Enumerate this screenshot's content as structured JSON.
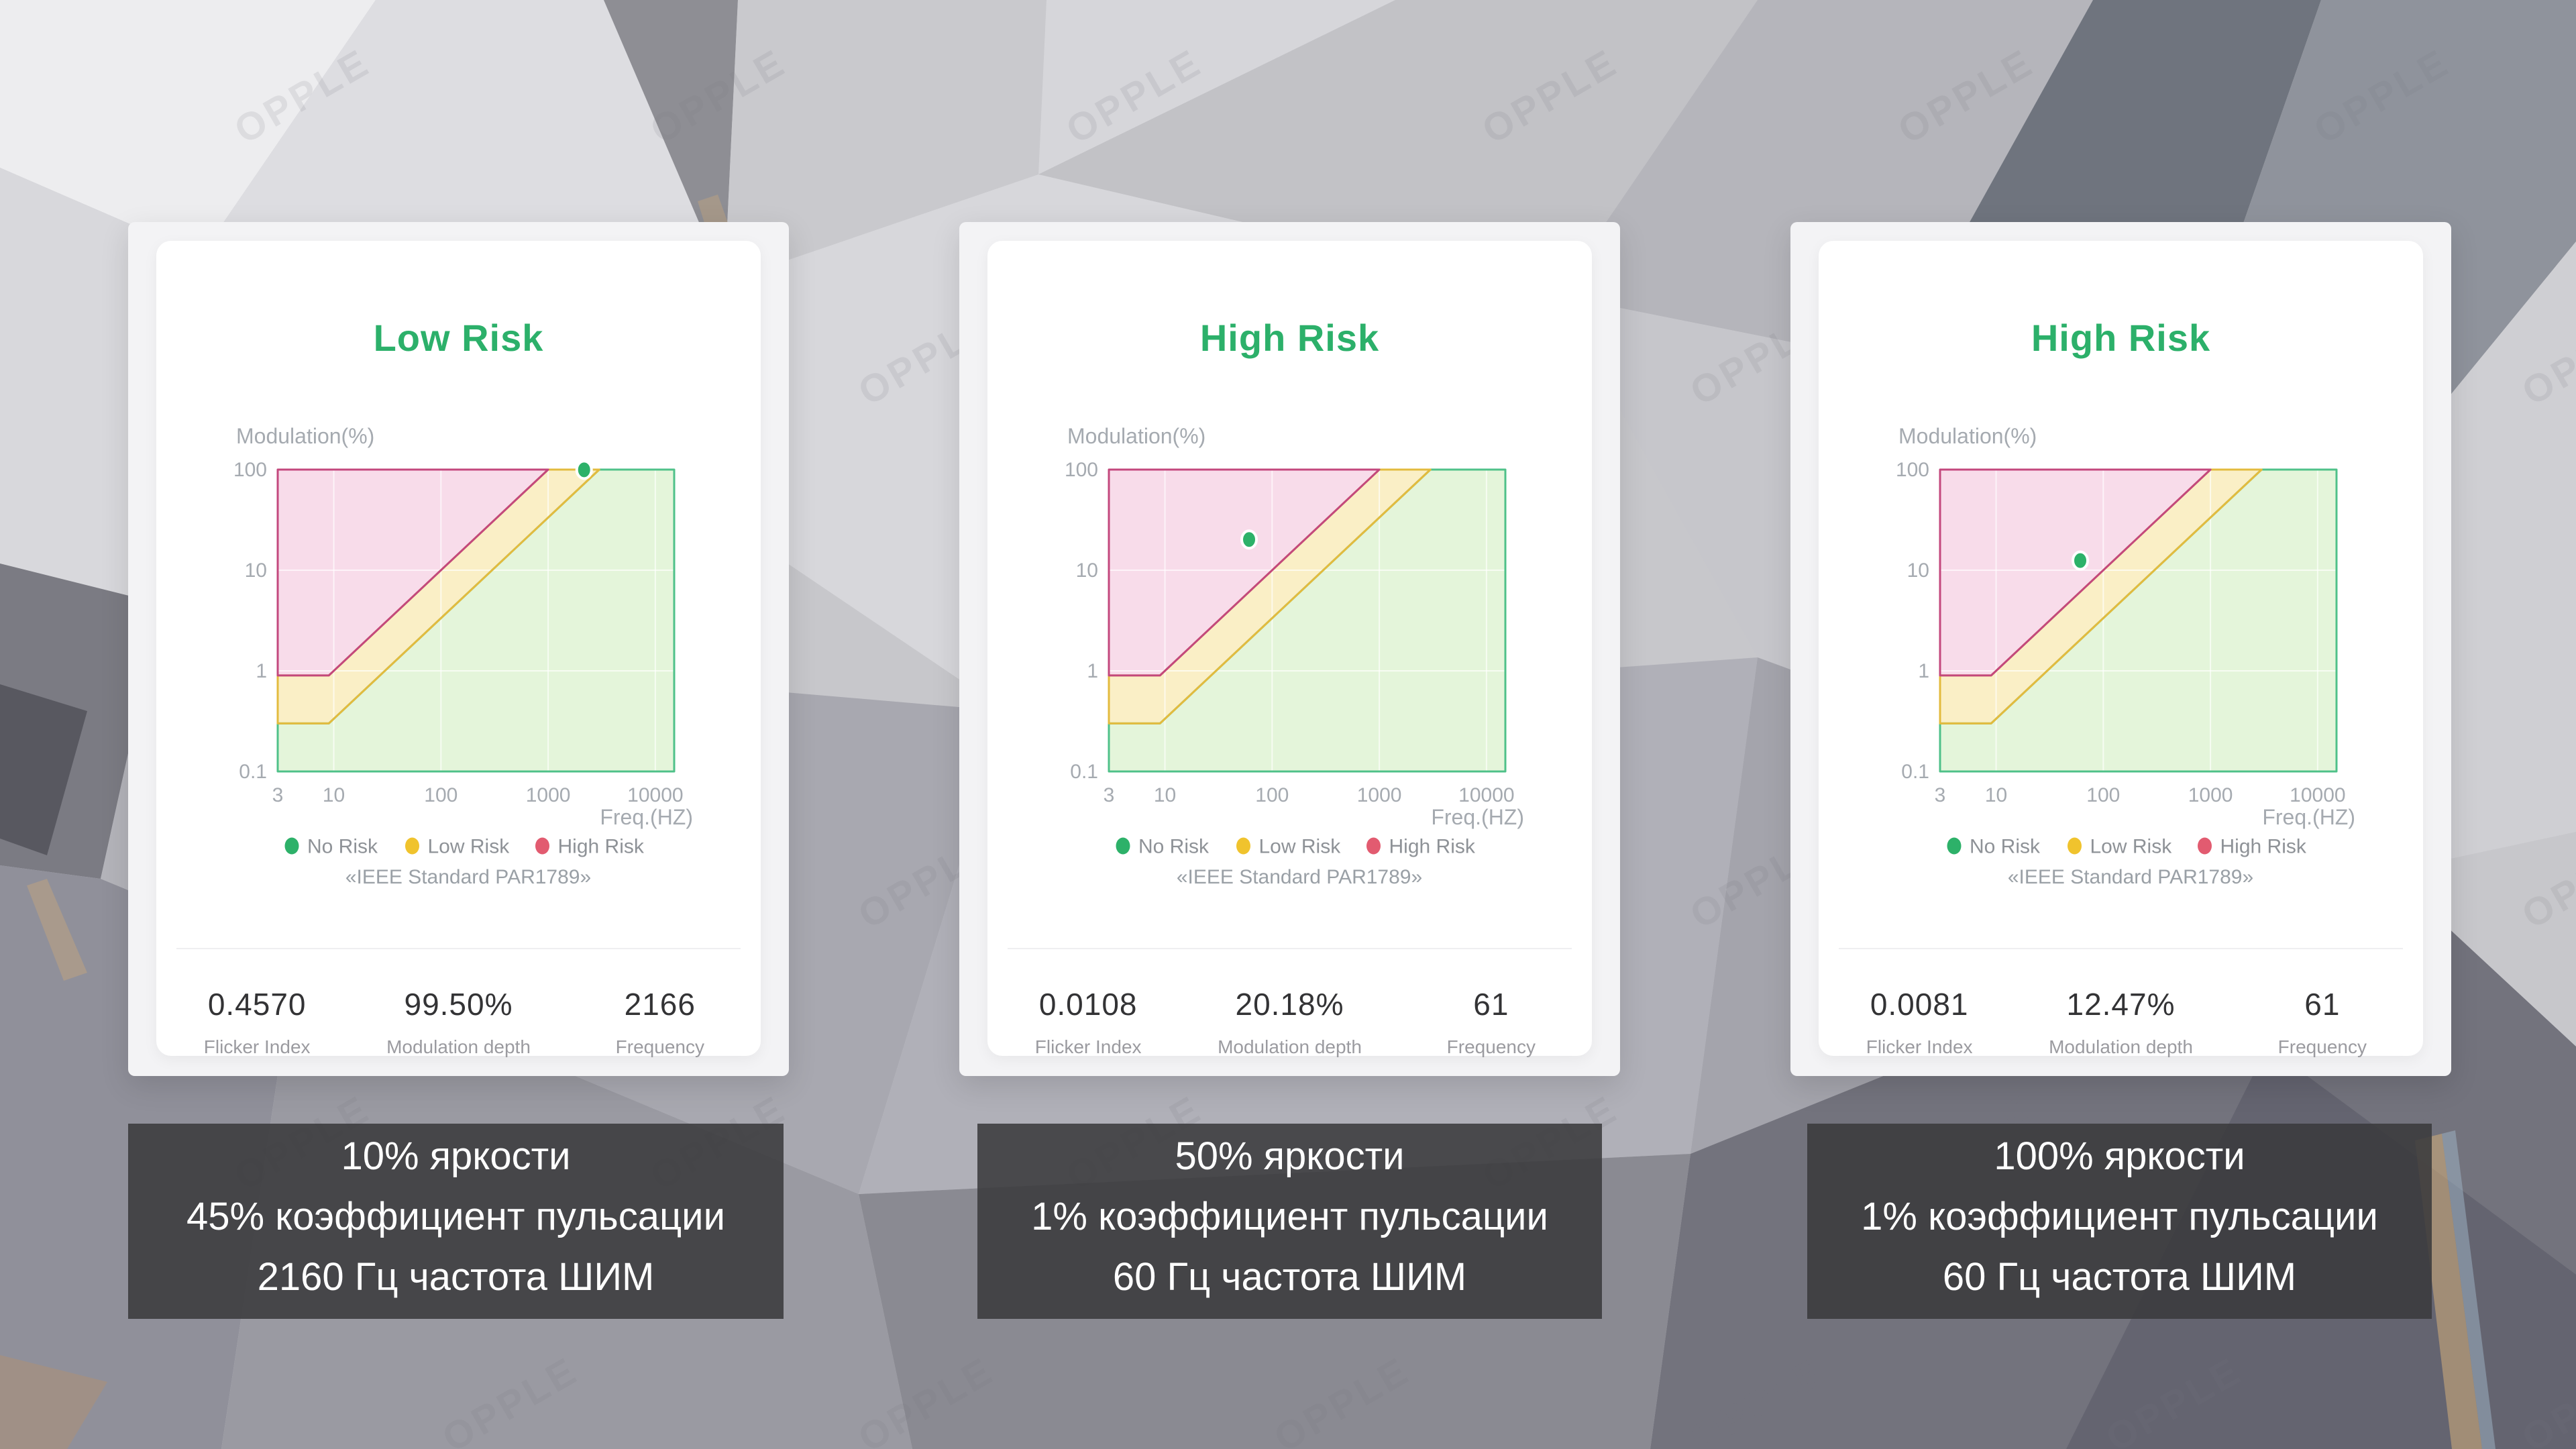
{
  "theme": {
    "verdict_green": "#2cb06a",
    "caption_background": "rgba(58,58,60,0.88)",
    "card_background": "#ffffff",
    "page_background": "#c7c7cb"
  },
  "watermark": {
    "text": "OPPLE"
  },
  "cards": [
    {
      "verdict": "Low Risk",
      "stats": [
        {
          "value": "0.4570",
          "label": "Flicker Index"
        },
        {
          "value": "99.50%",
          "label": "Modulation depth"
        },
        {
          "value": "2166",
          "label": "Frequency"
        }
      ],
      "caption": [
        "10% яркости",
        "45% коэффициент пульсации",
        "2160 Гц частота ШИМ"
      ]
    },
    {
      "verdict": "High Risk",
      "stats": [
        {
          "value": "0.0108",
          "label": "Flicker Index"
        },
        {
          "value": "20.18%",
          "label": "Modulation depth"
        },
        {
          "value": "61",
          "label": "Frequency"
        }
      ],
      "caption": [
        "50% яркости",
        "1% коэффициент пульсации",
        "60 Гц частота ШИМ"
      ]
    },
    {
      "verdict": "High Risk",
      "stats": [
        {
          "value": "0.0081",
          "label": "Flicker Index"
        },
        {
          "value": "12.47%",
          "label": "Modulation depth"
        },
        {
          "value": "61",
          "label": "Frequency"
        }
      ],
      "caption": [
        "100% яркости",
        "1% коэффициент пульсации",
        "60 Гц частота ШИМ"
      ]
    }
  ],
  "chart_data": [
    {
      "type": "area",
      "title": "",
      "xlabel": "Freq.(HZ)",
      "ylabel": "Modulation(%)",
      "x_scale": "log",
      "y_scale": "log",
      "xlim": [
        3,
        15000
      ],
      "ylim": [
        0.1,
        100
      ],
      "x_ticks": [
        3,
        10,
        100,
        1000,
        10000
      ],
      "y_ticks": [
        100,
        10,
        1,
        0.1
      ],
      "grid": true,
      "legend_position": "bottom",
      "legend": [
        {
          "label": "No Risk",
          "color": "#2db169"
        },
        {
          "label": "Low Risk",
          "color": "#f0c32d"
        },
        {
          "label": "High Risk",
          "color": "#e25b70"
        }
      ],
      "note": "《IEEE Standard PAR1789》",
      "regions": [
        {
          "name": "No Risk",
          "fill": "#e4f5da",
          "stroke": "#4fc189",
          "points": [
            [
              3,
              0.3
            ],
            [
              9,
              0.3
            ],
            [
              3000,
              100
            ],
            [
              15000,
              100
            ],
            [
              15000,
              0.1
            ],
            [
              3,
              0.1
            ]
          ]
        },
        {
          "name": "Low Risk",
          "fill": "#faefc6",
          "stroke": "#e3bb3e",
          "points": [
            [
              3,
              0.9
            ],
            [
              9,
              0.9
            ],
            [
              1000,
              100
            ],
            [
              3000,
              100
            ],
            [
              9,
              0.3
            ],
            [
              3,
              0.3
            ]
          ]
        },
        {
          "name": "High Risk",
          "fill": "#f8dcea",
          "stroke": "#c3487d",
          "points": [
            [
              3,
              100
            ],
            [
              1000,
              100
            ],
            [
              9,
              0.9
            ],
            [
              3,
              0.9
            ]
          ]
        }
      ],
      "series": [
        {
          "name": "measurement",
          "type": "scatter",
          "color": "#2db169",
          "points": [
            [
              2166,
              99.5
            ]
          ]
        }
      ]
    },
    {
      "type": "area",
      "title": "",
      "xlabel": "Freq.(HZ)",
      "ylabel": "Modulation(%)",
      "x_scale": "log",
      "y_scale": "log",
      "xlim": [
        3,
        15000
      ],
      "ylim": [
        0.1,
        100
      ],
      "x_ticks": [
        3,
        10,
        100,
        1000,
        10000
      ],
      "y_ticks": [
        100,
        10,
        1,
        0.1
      ],
      "grid": true,
      "legend_position": "bottom",
      "legend": [
        {
          "label": "No Risk",
          "color": "#2db169"
        },
        {
          "label": "Low Risk",
          "color": "#f0c32d"
        },
        {
          "label": "High Risk",
          "color": "#e25b70"
        }
      ],
      "note": "《IEEE Standard PAR1789》",
      "regions": [
        {
          "name": "No Risk",
          "fill": "#e4f5da",
          "stroke": "#4fc189",
          "points": [
            [
              3,
              0.3
            ],
            [
              9,
              0.3
            ],
            [
              3000,
              100
            ],
            [
              15000,
              100
            ],
            [
              15000,
              0.1
            ],
            [
              3,
              0.1
            ]
          ]
        },
        {
          "name": "Low Risk",
          "fill": "#faefc6",
          "stroke": "#e3bb3e",
          "points": [
            [
              3,
              0.9
            ],
            [
              9,
              0.9
            ],
            [
              1000,
              100
            ],
            [
              3000,
              100
            ],
            [
              9,
              0.3
            ],
            [
              3,
              0.3
            ]
          ]
        },
        {
          "name": "High Risk",
          "fill": "#f8dcea",
          "stroke": "#c3487d",
          "points": [
            [
              3,
              100
            ],
            [
              1000,
              100
            ],
            [
              9,
              0.9
            ],
            [
              3,
              0.9
            ]
          ]
        }
      ],
      "series": [
        {
          "name": "measurement",
          "type": "scatter",
          "color": "#2db169",
          "points": [
            [
              61,
              20.18
            ]
          ]
        }
      ]
    },
    {
      "type": "area",
      "title": "",
      "xlabel": "Freq.(HZ)",
      "ylabel": "Modulation(%)",
      "x_scale": "log",
      "y_scale": "log",
      "xlim": [
        3,
        15000
      ],
      "ylim": [
        0.1,
        100
      ],
      "x_ticks": [
        3,
        10,
        100,
        1000,
        10000
      ],
      "y_ticks": [
        100,
        10,
        1,
        0.1
      ],
      "grid": true,
      "legend_position": "bottom",
      "legend": [
        {
          "label": "No Risk",
          "color": "#2db169"
        },
        {
          "label": "Low Risk",
          "color": "#f0c32d"
        },
        {
          "label": "High Risk",
          "color": "#e25b70"
        }
      ],
      "note": "《IEEE Standard PAR1789》",
      "regions": [
        {
          "name": "No Risk",
          "fill": "#e4f5da",
          "stroke": "#4fc189",
          "points": [
            [
              3,
              0.3
            ],
            [
              9,
              0.3
            ],
            [
              3000,
              100
            ],
            [
              15000,
              100
            ],
            [
              15000,
              0.1
            ],
            [
              3,
              0.1
            ]
          ]
        },
        {
          "name": "Low Risk",
          "fill": "#faefc6",
          "stroke": "#e3bb3e",
          "points": [
            [
              3,
              0.9
            ],
            [
              9,
              0.9
            ],
            [
              1000,
              100
            ],
            [
              3000,
              100
            ],
            [
              9,
              0.3
            ],
            [
              3,
              0.3
            ]
          ]
        },
        {
          "name": "High Risk",
          "fill": "#f8dcea",
          "stroke": "#c3487d",
          "points": [
            [
              3,
              100
            ],
            [
              1000,
              100
            ],
            [
              9,
              0.9
            ],
            [
              3,
              0.9
            ]
          ]
        }
      ],
      "series": [
        {
          "name": "measurement",
          "type": "scatter",
          "color": "#2db169",
          "points": [
            [
              61,
              12.47
            ]
          ]
        }
      ]
    }
  ]
}
